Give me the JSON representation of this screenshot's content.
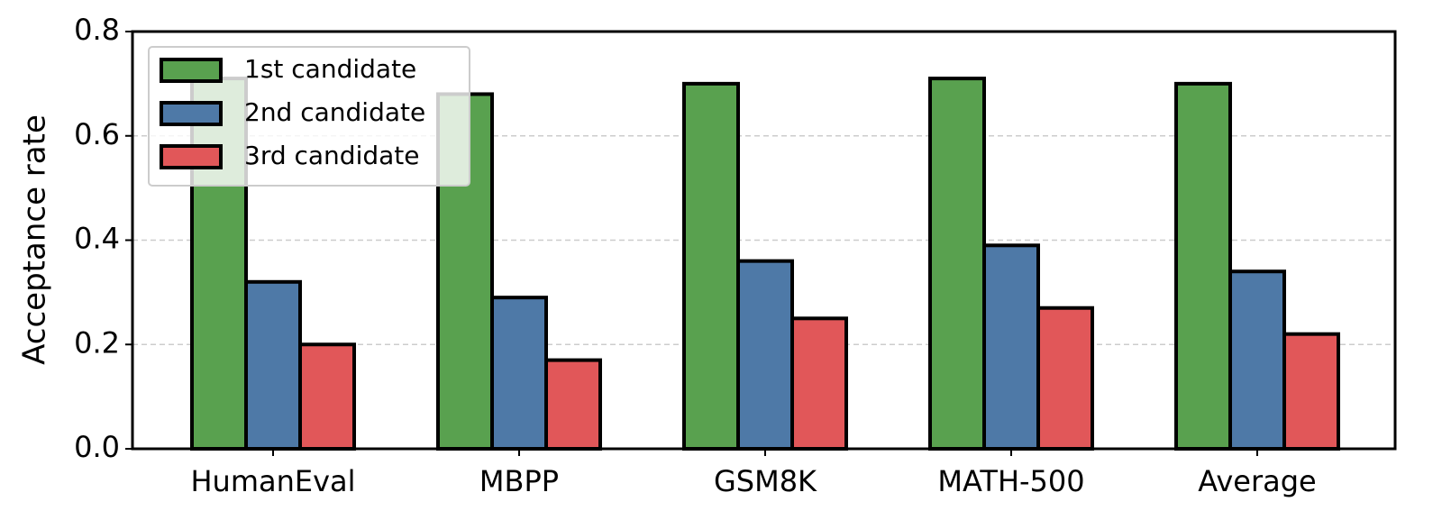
{
  "chart_data": {
    "type": "bar",
    "y_label": "Acceptance rate",
    "categories": [
      "HumanEval",
      "MBPP",
      "GSM8K",
      "MATH-500",
      "Average"
    ],
    "series": [
      {
        "name": "1st candidate",
        "color": "#59a14f",
        "values": [
          0.71,
          0.68,
          0.7,
          0.71,
          0.7
        ]
      },
      {
        "name": "2nd candidate",
        "color": "#4e79a7",
        "values": [
          0.32,
          0.29,
          0.36,
          0.39,
          0.34
        ]
      },
      {
        "name": "3rd candidate",
        "color": "#e15759",
        "values": [
          0.2,
          0.17,
          0.25,
          0.27,
          0.22
        ]
      }
    ],
    "ylim": [
      0,
      0.8
    ],
    "yticks": [
      {
        "value": 0,
        "label": "0.0"
      },
      0.2,
      0.4,
      0.6,
      0.8
    ],
    "grid": true,
    "legend": "upper left"
  }
}
